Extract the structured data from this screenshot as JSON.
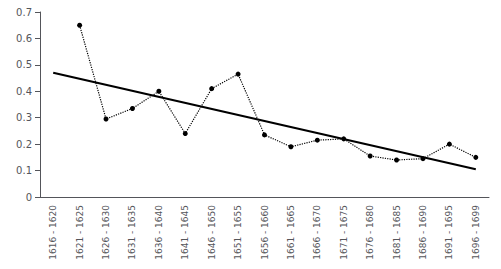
{
  "chart_data": {
    "type": "line",
    "categories": [
      "1616 - 1620",
      "1621 - 1625",
      "1626 - 1630",
      "1631 - 1635",
      "1636 - 1640",
      "1641 - 1645",
      "1646 - 1650",
      "1651 - 1655",
      "1656 - 1660",
      "1661 - 1665",
      "1666 - 1670",
      "1671 - 1675",
      "1676 - 1680",
      "1681 - 1685",
      "1686 - 1690",
      "1691 - 1695",
      "1696 - 1699"
    ],
    "series": [
      {
        "type": "line",
        "color": "#000000",
        "line_style": "dotted",
        "marker": "circle",
        "values": [
          null,
          0.65,
          0.295,
          0.335,
          0.4,
          0.24,
          0.41,
          0.465,
          0.235,
          0.19,
          0.215,
          0.22,
          0.155,
          0.14,
          0.145,
          0.2,
          0.15
        ]
      },
      {
        "type": "trend",
        "color": "#000000",
        "line_style": "solid",
        "marker": "none",
        "values": [
          0.47,
          null,
          null,
          null,
          null,
          null,
          null,
          null,
          null,
          null,
          null,
          null,
          null,
          null,
          null,
          null,
          0.105
        ]
      }
    ],
    "ylim": [
      0,
      0.7
    ],
    "yticks": [
      0,
      0.1,
      0.2,
      0.3,
      0.4,
      0.5,
      0.6,
      0.7
    ],
    "grid": false
  }
}
